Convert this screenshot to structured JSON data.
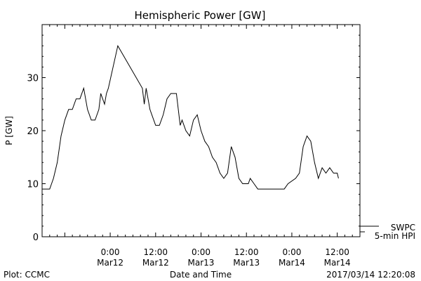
{
  "chart_data": {
    "type": "line",
    "title": "Hemispheric Power [GW]",
    "ylabel": "P [GW]",
    "xlabel": "Date and Time",
    "xlim": [
      "2017-03-11T06:00",
      "2017-03-14T18:00"
    ],
    "ylim": [
      0,
      40
    ],
    "yticks": [
      0,
      10,
      20,
      30
    ],
    "xticks": [
      {
        "t": "2017-03-12T00:00",
        "time": "0:00",
        "date": "Mar12"
      },
      {
        "t": "2017-03-12T12:00",
        "time": "12:00",
        "date": "Mar12"
      },
      {
        "t": "2017-03-13T00:00",
        "time": "0:00",
        "date": "Mar13"
      },
      {
        "t": "2017-03-13T12:00",
        "time": "12:00",
        "date": "Mar13"
      },
      {
        "t": "2017-03-14T00:00",
        "time": "0:00",
        "date": "Mar14"
      },
      {
        "t": "2017-03-14T12:00",
        "time": "12:00",
        "date": "Mar14"
      }
    ],
    "grid": false,
    "series": [
      {
        "name": "",
        "color": "#000000",
        "points": [
          [
            "2017-03-11T06:00",
            9
          ],
          [
            "2017-03-11T08:00",
            9
          ],
          [
            "2017-03-11T08:30",
            10
          ],
          [
            "2017-03-11T09:00",
            11
          ],
          [
            "2017-03-11T10:00",
            14
          ],
          [
            "2017-03-11T11:00",
            19
          ],
          [
            "2017-03-11T12:00",
            22
          ],
          [
            "2017-03-11T13:00",
            24
          ],
          [
            "2017-03-11T14:00",
            24
          ],
          [
            "2017-03-11T15:00",
            26
          ],
          [
            "2017-03-11T16:00",
            26
          ],
          [
            "2017-03-11T17:00",
            28
          ],
          [
            "2017-03-11T18:00",
            24
          ],
          [
            "2017-03-11T19:00",
            22
          ],
          [
            "2017-03-11T20:00",
            22
          ],
          [
            "2017-03-11T21:00",
            24
          ],
          [
            "2017-03-11T21:30",
            27
          ],
          [
            "2017-03-11T22:30",
            25
          ],
          [
            "2017-03-11T23:00",
            27
          ],
          [
            "2017-03-11T23:30",
            28
          ],
          [
            "2017-03-12T02:00",
            36
          ],
          [
            "2017-03-12T08:30",
            28
          ],
          [
            "2017-03-12T09:00",
            25
          ],
          [
            "2017-03-12T09:30",
            28
          ],
          [
            "2017-03-12T10:30",
            24
          ],
          [
            "2017-03-12T11:00",
            23
          ],
          [
            "2017-03-12T12:00",
            21
          ],
          [
            "2017-03-12T13:00",
            21
          ],
          [
            "2017-03-12T14:00",
            23
          ],
          [
            "2017-03-12T15:00",
            26
          ],
          [
            "2017-03-12T16:00",
            27
          ],
          [
            "2017-03-12T17:30",
            27
          ],
          [
            "2017-03-12T18:30",
            21
          ],
          [
            "2017-03-12T19:00",
            22
          ],
          [
            "2017-03-12T20:00",
            20
          ],
          [
            "2017-03-12T21:00",
            19
          ],
          [
            "2017-03-12T22:00",
            22
          ],
          [
            "2017-03-12T23:00",
            23
          ],
          [
            "2017-03-13T00:00",
            20
          ],
          [
            "2017-03-13T01:00",
            18
          ],
          [
            "2017-03-13T02:00",
            17
          ],
          [
            "2017-03-13T03:00",
            15
          ],
          [
            "2017-03-13T04:00",
            14
          ],
          [
            "2017-03-13T05:00",
            12
          ],
          [
            "2017-03-13T06:00",
            11
          ],
          [
            "2017-03-13T07:00",
            12
          ],
          [
            "2017-03-13T08:00",
            17
          ],
          [
            "2017-03-13T09:00",
            15
          ],
          [
            "2017-03-13T10:00",
            11
          ],
          [
            "2017-03-13T11:00",
            10
          ],
          [
            "2017-03-13T12:30",
            10
          ],
          [
            "2017-03-13T13:00",
            11
          ],
          [
            "2017-03-13T14:00",
            10
          ],
          [
            "2017-03-13T15:00",
            9
          ],
          [
            "2017-03-13T22:00",
            9
          ],
          [
            "2017-03-13T23:00",
            10
          ],
          [
            "2017-03-14T01:00",
            11
          ],
          [
            "2017-03-14T02:00",
            12
          ],
          [
            "2017-03-14T03:00",
            17
          ],
          [
            "2017-03-14T04:00",
            19
          ],
          [
            "2017-03-14T05:00",
            18
          ],
          [
            "2017-03-14T06:00",
            14
          ],
          [
            "2017-03-14T07:00",
            11
          ],
          [
            "2017-03-14T08:00",
            13
          ],
          [
            "2017-03-14T09:00",
            12
          ],
          [
            "2017-03-14T10:00",
            13
          ],
          [
            "2017-03-14T11:00",
            12
          ],
          [
            "2017-03-14T12:00",
            12
          ],
          [
            "2017-03-14T12:20",
            11
          ]
        ]
      }
    ],
    "legend": {
      "placement": "right",
      "entries": [
        "SWPC",
        "5-min HPI"
      ]
    }
  },
  "footer": {
    "left": "Plot: CCMC",
    "center": "Date and Time",
    "right": "2017/03/14 12:20:08"
  }
}
